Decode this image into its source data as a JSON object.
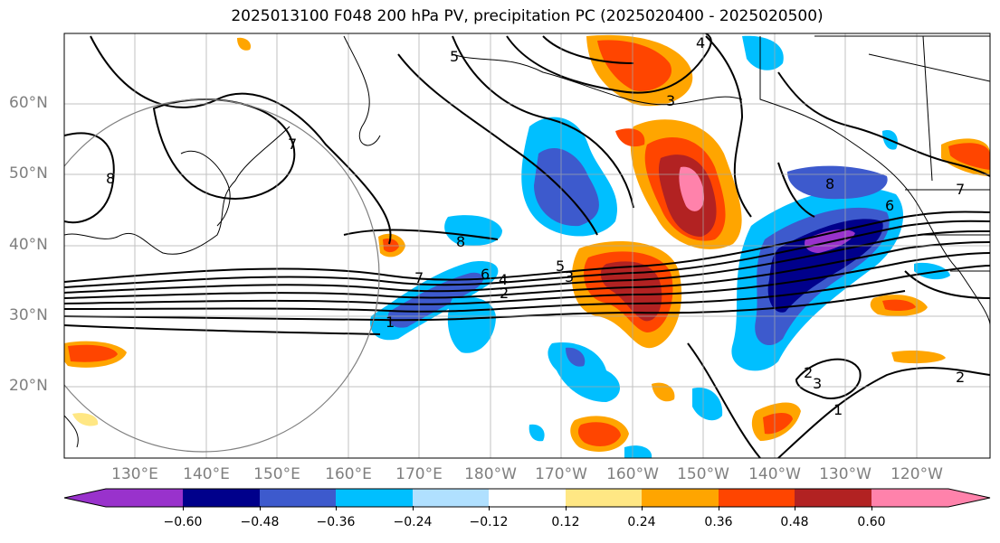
{
  "title": "2025013100 F048 200 hPa PV, precipitation PC (2025020400 - 2025020500)",
  "lat_labels": [
    "60°N",
    "50°N",
    "40°N",
    "30°N",
    "20°N"
  ],
  "lon_labels": [
    "130°E",
    "140°E",
    "150°E",
    "160°E",
    "170°E",
    "180°W",
    "170°W",
    "160°W",
    "150°W",
    "140°W",
    "130°W",
    "120°W"
  ],
  "contour_labels": [
    "7",
    "8",
    "6",
    "5",
    "4",
    "3",
    "2",
    "1",
    "5",
    "4",
    "3",
    "8",
    "7",
    "6",
    "7",
    "8",
    "2",
    "3",
    "1",
    "2"
  ],
  "colorbar": {
    "ticks": [
      "−0.60",
      "−0.48",
      "−0.36",
      "−0.24",
      "−0.12",
      "0.12",
      "0.24",
      "0.36",
      "0.48",
      "0.60"
    ],
    "colors": [
      "#9932cc",
      "#00008b",
      "#3d5acd",
      "#00bfff",
      "#b0e0ff",
      "#ffffff",
      "#ffe784",
      "#ffa500",
      "#ff4500",
      "#b22222",
      "#ff82ab"
    ]
  }
}
